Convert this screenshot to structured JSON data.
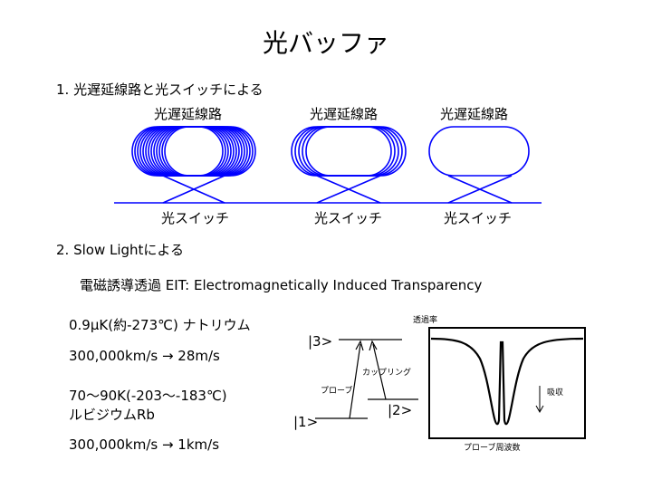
{
  "title": "光バッファ",
  "section1": {
    "heading": "1. 光遅延線路と光スイッチによる",
    "delay_labels": [
      "光遅延線路",
      "光遅延線路",
      "光遅延線路"
    ],
    "switch_labels": [
      "光スイッチ",
      "光スイッチ",
      "光スイッチ"
    ]
  },
  "section2": {
    "heading": "2. Slow Lightによる",
    "eit_line": "電磁誘導透過  EIT: Electromagnetically Induced Transparency",
    "na_line": "0.9μK(約-273℃) ナトリウム",
    "na_speed": "300,000km/s  →  28m/s",
    "rb_line1": "70～90K(-203～-183℃)",
    "rb_line2": "ルビジウムRb",
    "rb_speed": "300,000km/s  →  1km/s"
  },
  "level_diagram": {
    "level3": "|3>",
    "level2": "|2>",
    "level1": "|1>",
    "coupling_label": "カップリング",
    "probe_label": "プローブ"
  },
  "spectrum": {
    "ylabel": "透過率",
    "xlabel": "プローブ周波数",
    "absorption_label": "吸収"
  }
}
